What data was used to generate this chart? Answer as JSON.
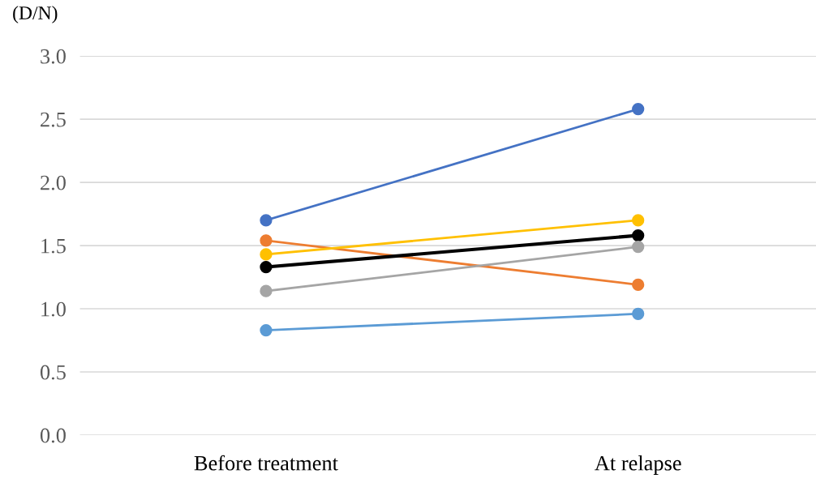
{
  "chart_data": {
    "type": "line",
    "ylabel": "(D/N)",
    "categories": [
      "Before treatment",
      "At relapse"
    ],
    "series": [
      {
        "color": "#4472c4",
        "values": [
          1.7,
          2.58
        ]
      },
      {
        "color": "#ed7d31",
        "values": [
          1.54,
          1.19
        ]
      },
      {
        "color": "#ffc000",
        "values": [
          1.43,
          1.7
        ]
      },
      {
        "color": "#000000",
        "values": [
          1.33,
          1.58
        ]
      },
      {
        "color": "#a5a5a5",
        "values": [
          1.14,
          1.49
        ]
      },
      {
        "color": "#5b9bd5",
        "values": [
          0.83,
          0.96
        ]
      }
    ],
    "ylim": [
      0,
      3
    ],
    "yticks": [
      {
        "value": 0,
        "label": "0.0"
      },
      {
        "value": 0.5,
        "label": "0.5"
      },
      {
        "value": 1,
        "label": "1.0"
      },
      {
        "value": 1.5,
        "label": "1.5"
      },
      {
        "value": 2,
        "label": "2.0"
      },
      {
        "value": 2.5,
        "label": "2.5"
      },
      {
        "value": 3,
        "label": "3.0"
      }
    ],
    "grid": "y",
    "marker": "circle",
    "line_style": "solid",
    "legend": false
  }
}
